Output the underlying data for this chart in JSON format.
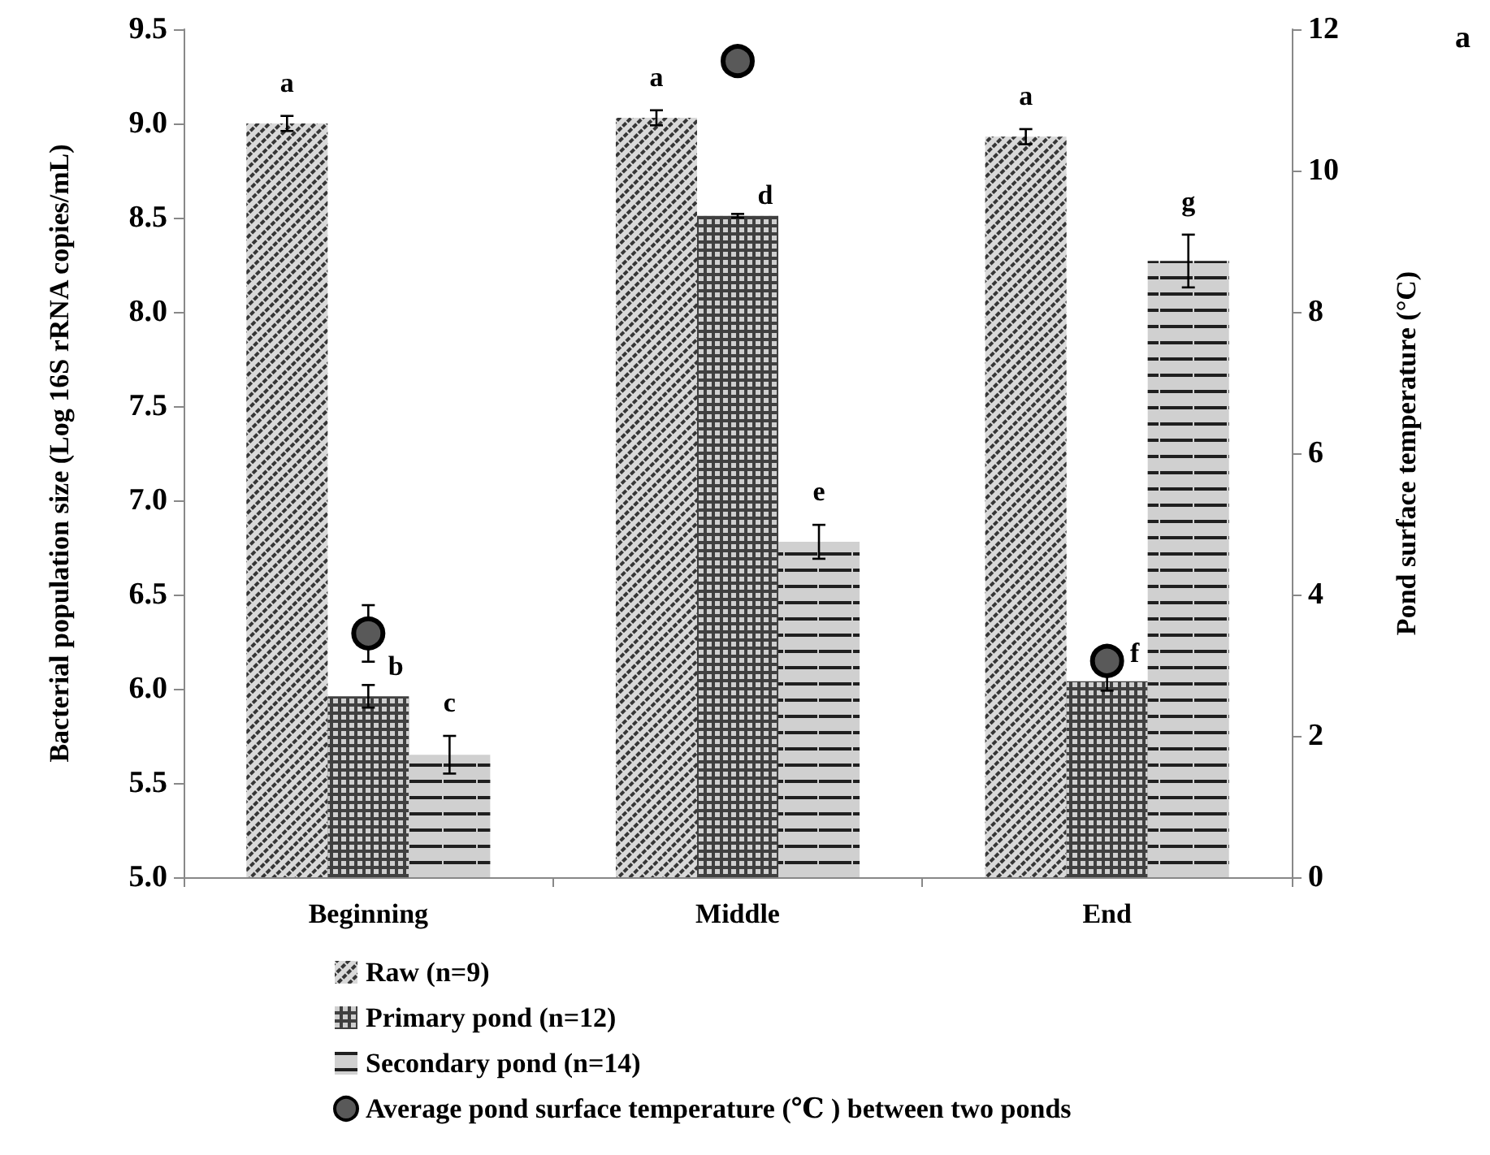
{
  "chart_data": {
    "type": "bar",
    "categories": [
      "Beginning",
      "Middle",
      "End"
    ],
    "ylabel": "Bacterial population size (Log 16S rRNA copies/mL)",
    "y2label": "Pond surface temperature (°C)",
    "ylim": [
      5,
      9.5
    ],
    "yticks": [
      {
        "value": 5,
        "label": "5.0"
      },
      {
        "value": 5.5,
        "label": "5.5"
      },
      {
        "value": 6,
        "label": "6.0"
      },
      {
        "value": 6.5,
        "label": "6.5"
      },
      {
        "value": 7,
        "label": "7.0"
      },
      {
        "value": 7.5,
        "label": "7.5"
      },
      {
        "value": 8,
        "label": "8.0"
      },
      {
        "value": 8.5,
        "label": "8.5"
      },
      {
        "value": 9,
        "label": "9.0"
      },
      {
        "value": 9.5,
        "label": "9.5"
      }
    ],
    "y2lim": [
      0,
      12
    ],
    "y2ticks": [
      0,
      2,
      4,
      6,
      8,
      10,
      12
    ],
    "series": [
      {
        "name": "Raw (n=9)",
        "color": "#d9d9d9",
        "values": [
          9.0,
          9.03,
          8.93
        ],
        "errors": [
          0.04,
          0.04,
          0.04
        ],
        "value_labels": [
          "a",
          "a",
          "a"
        ]
      },
      {
        "name": "Primary pond (n=12)",
        "color": "#404040",
        "values": [
          5.96,
          8.51,
          6.04
        ],
        "errors": [
          0.06,
          0.01,
          0.05
        ],
        "value_labels": [
          "b",
          "d",
          "f"
        ]
      },
      {
        "name": "Secondary pond (n=14)",
        "color": "#d0d0d0",
        "values": [
          5.65,
          6.78,
          8.27
        ],
        "errors": [
          0.1,
          0.09,
          0.14
        ],
        "value_labels": [
          "c",
          "e",
          "g"
        ]
      },
      {
        "name": "Average pond surface temperature (℃ ) between two ponds",
        "type": "scatter",
        "axis": "y2",
        "color": "#595959",
        "values": [
          3.45,
          11.55,
          3.06
        ],
        "errors": [
          0.4,
          null,
          null
        ]
      }
    ],
    "marker": "circle",
    "grid": false,
    "legend": "bottom",
    "annotations": [
      "a"
    ]
  }
}
